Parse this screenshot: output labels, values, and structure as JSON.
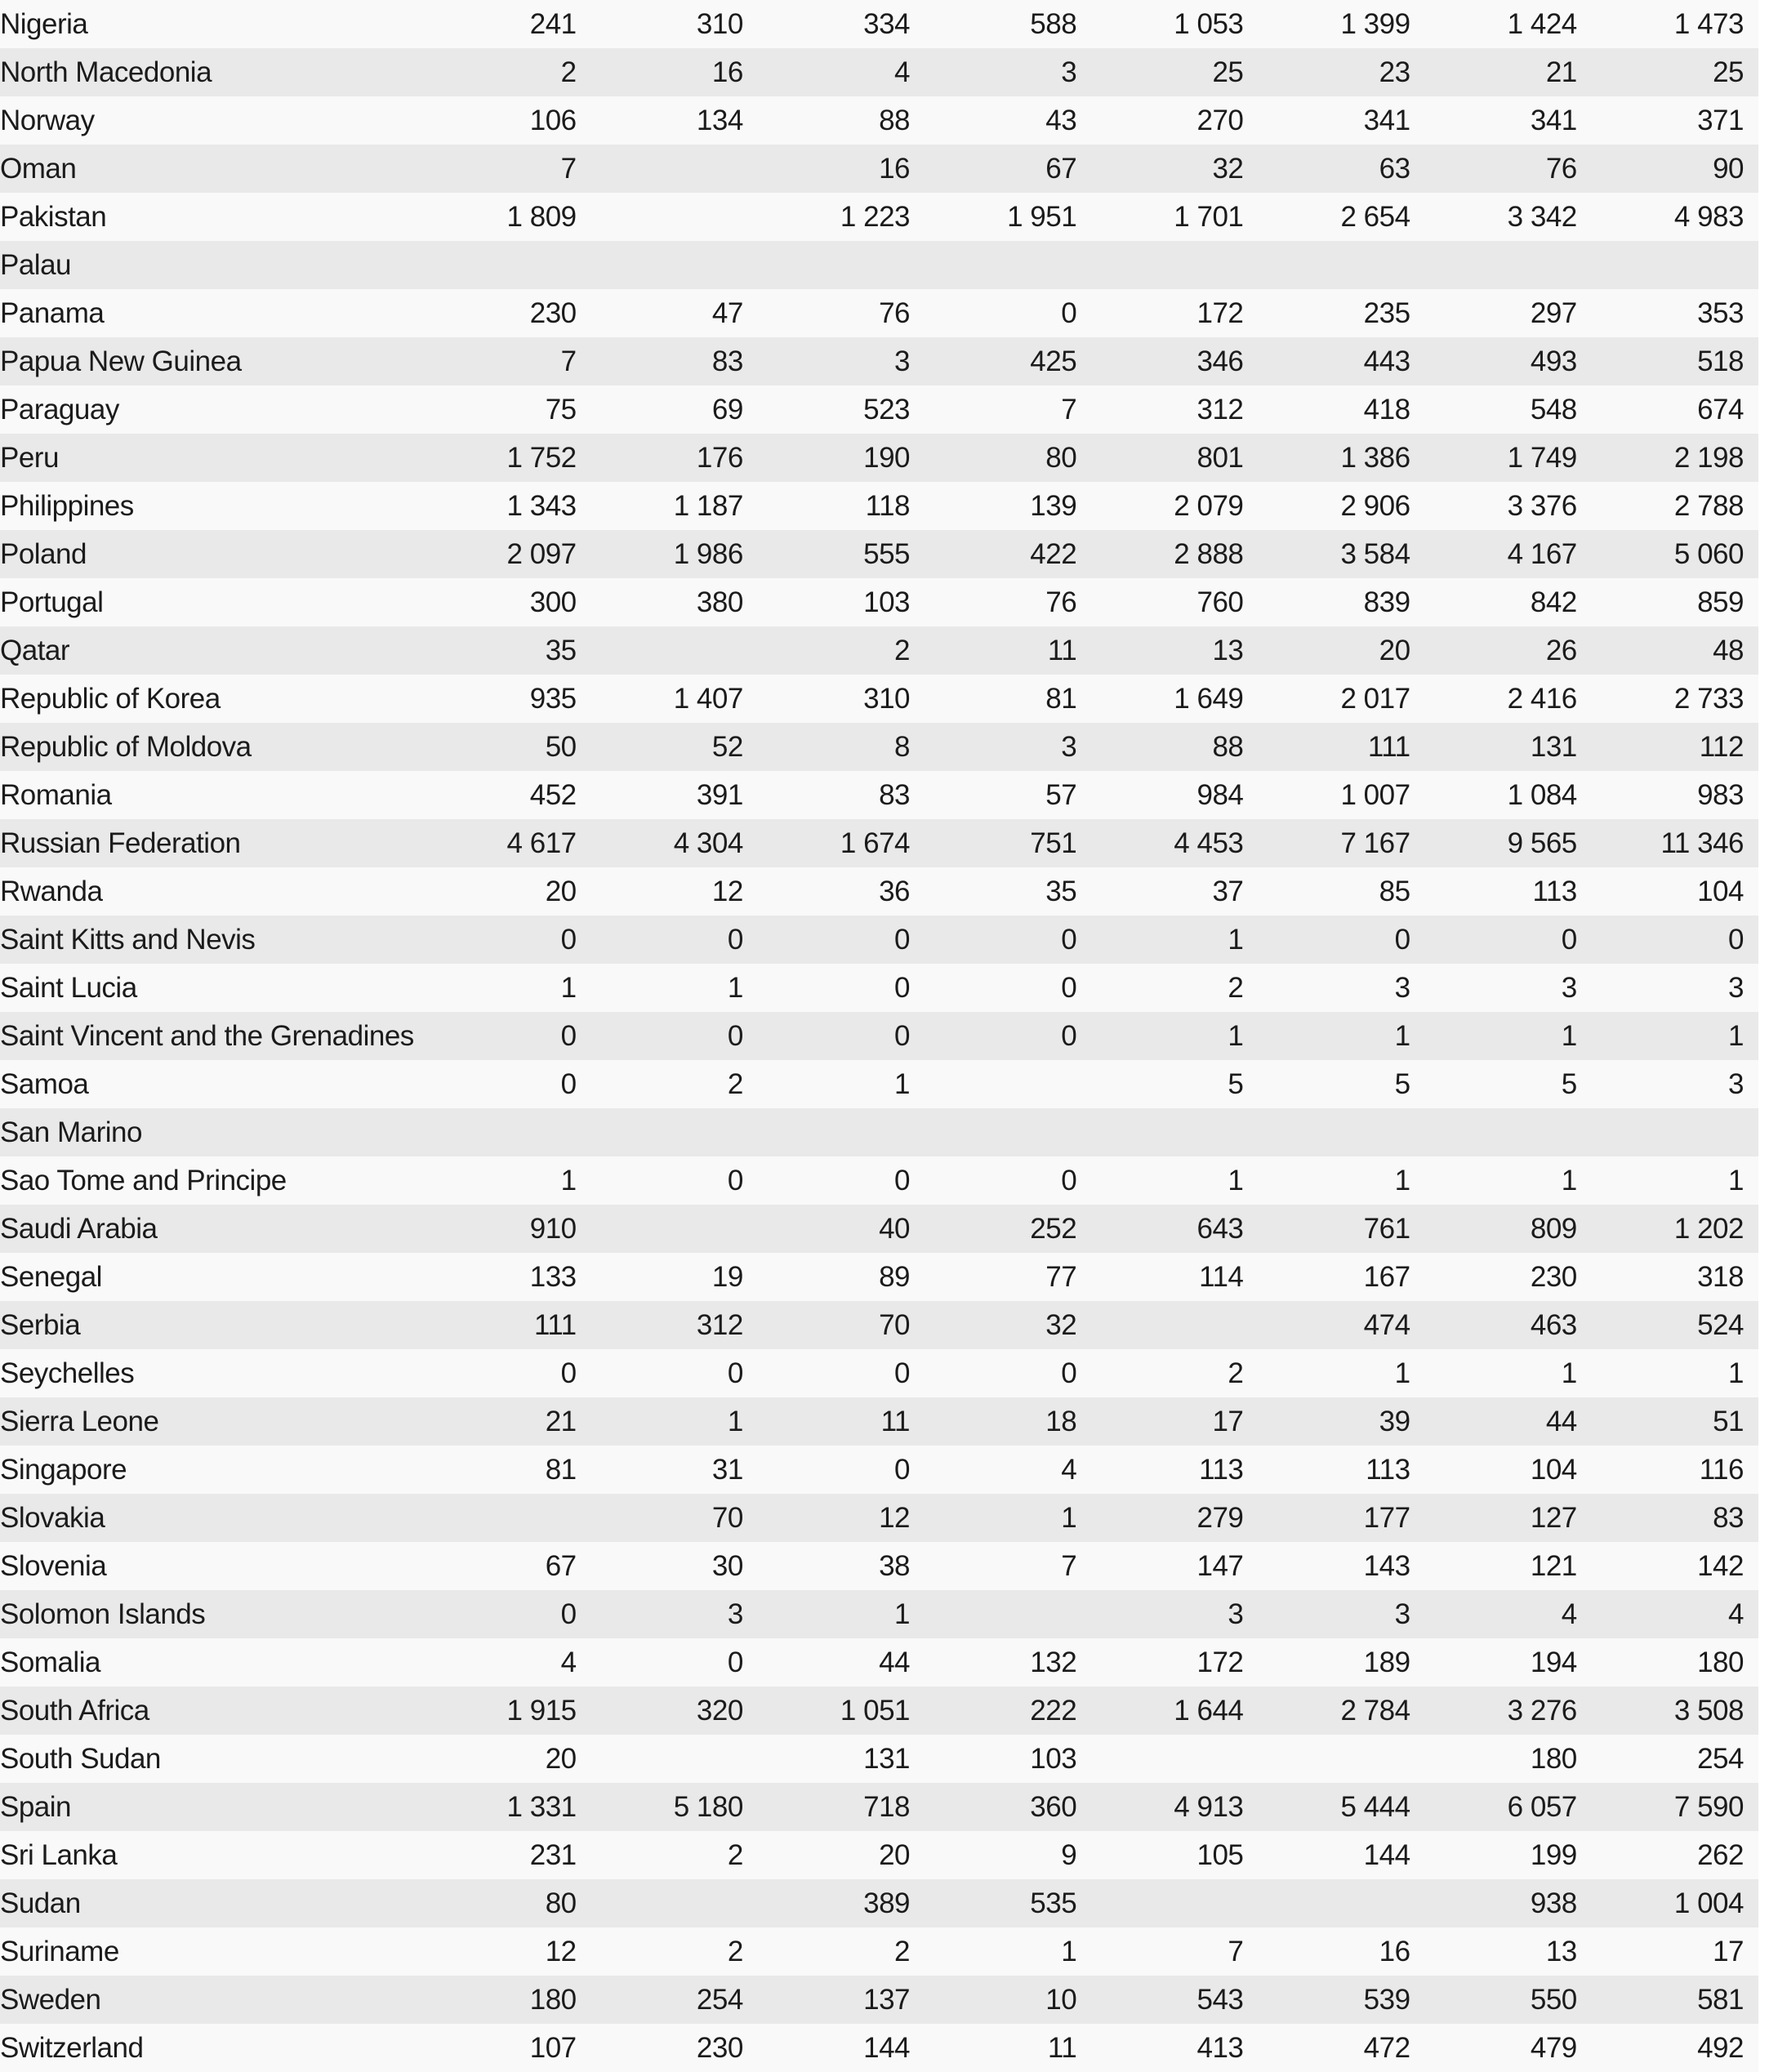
{
  "colors": {
    "row_light": "#f9f9f9",
    "row_dark": "#e9e9e9",
    "text": "#1b1b1b",
    "page_background": "#ffffff"
  },
  "table": {
    "value_columns_count": 8,
    "rows": [
      {
        "country": "Nigeria",
        "values": [
          "241",
          "310",
          "334",
          "588",
          "1 053",
          "1 399",
          "1 424",
          "1 473"
        ]
      },
      {
        "country": "North Macedonia",
        "values": [
          "2",
          "16",
          "4",
          "3",
          "25",
          "23",
          "21",
          "25"
        ]
      },
      {
        "country": "Norway",
        "values": [
          "106",
          "134",
          "88",
          "43",
          "270",
          "341",
          "341",
          "371"
        ]
      },
      {
        "country": "Oman",
        "values": [
          "7",
          "",
          "16",
          "67",
          "32",
          "63",
          "76",
          "90"
        ]
      },
      {
        "country": "Pakistan",
        "values": [
          "1 809",
          "",
          "1 223",
          "1 951",
          "1 701",
          "2 654",
          "3 342",
          "4 983"
        ]
      },
      {
        "country": "Palau",
        "values": [
          "",
          "",
          "",
          "",
          "",
          "",
          "",
          ""
        ]
      },
      {
        "country": "Panama",
        "values": [
          "230",
          "47",
          "76",
          "0",
          "172",
          "235",
          "297",
          "353"
        ]
      },
      {
        "country": "Papua New Guinea",
        "values": [
          "7",
          "83",
          "3",
          "425",
          "346",
          "443",
          "493",
          "518"
        ]
      },
      {
        "country": "Paraguay",
        "values": [
          "75",
          "69",
          "523",
          "7",
          "312",
          "418",
          "548",
          "674"
        ]
      },
      {
        "country": "Peru",
        "values": [
          "1 752",
          "176",
          "190",
          "80",
          "801",
          "1 386",
          "1 749",
          "2 198"
        ]
      },
      {
        "country": "Philippines",
        "values": [
          "1 343",
          "1 187",
          "118",
          "139",
          "2 079",
          "2 906",
          "3 376",
          "2 788"
        ]
      },
      {
        "country": "Poland",
        "values": [
          "2 097",
          "1 986",
          "555",
          "422",
          "2 888",
          "3 584",
          "4 167",
          "5 060"
        ]
      },
      {
        "country": "Portugal",
        "values": [
          "300",
          "380",
          "103",
          "76",
          "760",
          "839",
          "842",
          "859"
        ]
      },
      {
        "country": "Qatar",
        "values": [
          "35",
          "",
          "2",
          "11",
          "13",
          "20",
          "26",
          "48"
        ]
      },
      {
        "country": "Republic of Korea",
        "values": [
          "935",
          "1 407",
          "310",
          "81",
          "1 649",
          "2 017",
          "2 416",
          "2 733"
        ]
      },
      {
        "country": "Republic of Moldova",
        "values": [
          "50",
          "52",
          "8",
          "3",
          "88",
          "111",
          "131",
          "112"
        ]
      },
      {
        "country": "Romania",
        "values": [
          "452",
          "391",
          "83",
          "57",
          "984",
          "1 007",
          "1 084",
          "983"
        ]
      },
      {
        "country": "Russian Federation",
        "values": [
          "4 617",
          "4 304",
          "1 674",
          "751",
          "4 453",
          "7 167",
          "9 565",
          "11 346"
        ]
      },
      {
        "country": "Rwanda",
        "values": [
          "20",
          "12",
          "36",
          "35",
          "37",
          "85",
          "113",
          "104"
        ]
      },
      {
        "country": "Saint Kitts and Nevis",
        "values": [
          "0",
          "0",
          "0",
          "0",
          "1",
          "0",
          "0",
          "0"
        ]
      },
      {
        "country": "Saint Lucia",
        "values": [
          "1",
          "1",
          "0",
          "0",
          "2",
          "3",
          "3",
          "3"
        ]
      },
      {
        "country": "Saint Vincent and the Grenadines",
        "values": [
          "0",
          "0",
          "0",
          "0",
          "1",
          "1",
          "1",
          "1"
        ]
      },
      {
        "country": "Samoa",
        "values": [
          "0",
          "2",
          "1",
          "",
          "5",
          "5",
          "5",
          "3"
        ]
      },
      {
        "country": "San Marino",
        "values": [
          "",
          "",
          "",
          "",
          "",
          "",
          "",
          ""
        ]
      },
      {
        "country": "Sao Tome and Principe",
        "values": [
          "1",
          "0",
          "0",
          "0",
          "1",
          "1",
          "1",
          "1"
        ]
      },
      {
        "country": "Saudi Arabia",
        "values": [
          "910",
          "",
          "40",
          "252",
          "643",
          "761",
          "809",
          "1 202"
        ]
      },
      {
        "country": "Senegal",
        "values": [
          "133",
          "19",
          "89",
          "77",
          "114",
          "167",
          "230",
          "318"
        ]
      },
      {
        "country": "Serbia",
        "values": [
          "111",
          "312",
          "70",
          "32",
          "",
          "474",
          "463",
          "524"
        ]
      },
      {
        "country": "Seychelles",
        "values": [
          "0",
          "0",
          "0",
          "0",
          "2",
          "1",
          "1",
          "1"
        ]
      },
      {
        "country": "Sierra Leone",
        "values": [
          "21",
          "1",
          "11",
          "18",
          "17",
          "39",
          "44",
          "51"
        ]
      },
      {
        "country": "Singapore",
        "values": [
          "81",
          "31",
          "0",
          "4",
          "113",
          "113",
          "104",
          "116"
        ]
      },
      {
        "country": "Slovakia",
        "values": [
          "",
          "70",
          "12",
          "1",
          "279",
          "177",
          "127",
          "83"
        ]
      },
      {
        "country": "Slovenia",
        "values": [
          "67",
          "30",
          "38",
          "7",
          "147",
          "143",
          "121",
          "142"
        ]
      },
      {
        "country": "Solomon Islands",
        "values": [
          "0",
          "3",
          "1",
          "",
          "3",
          "3",
          "4",
          "4"
        ]
      },
      {
        "country": "Somalia",
        "values": [
          "4",
          "0",
          "44",
          "132",
          "172",
          "189",
          "194",
          "180"
        ]
      },
      {
        "country": "South Africa",
        "values": [
          "1 915",
          "320",
          "1 051",
          "222",
          "1 644",
          "2 784",
          "3 276",
          "3 508"
        ]
      },
      {
        "country": "South Sudan",
        "values": [
          "20",
          "",
          "131",
          "103",
          "",
          "",
          "180",
          "254"
        ]
      },
      {
        "country": "Spain",
        "values": [
          "1 331",
          "5 180",
          "718",
          "360",
          "4 913",
          "5 444",
          "6 057",
          "7 590"
        ]
      },
      {
        "country": "Sri Lanka",
        "values": [
          "231",
          "2",
          "20",
          "9",
          "105",
          "144",
          "199",
          "262"
        ]
      },
      {
        "country": "Sudan",
        "values": [
          "80",
          "",
          "389",
          "535",
          "",
          "",
          "938",
          "1 004"
        ]
      },
      {
        "country": "Suriname",
        "values": [
          "12",
          "2",
          "2",
          "1",
          "7",
          "16",
          "13",
          "17"
        ]
      },
      {
        "country": "Sweden",
        "values": [
          "180",
          "254",
          "137",
          "10",
          "543",
          "539",
          "550",
          "581"
        ]
      },
      {
        "country": "Switzerland",
        "values": [
          "107",
          "230",
          "144",
          "11",
          "413",
          "472",
          "479",
          "492"
        ]
      }
    ]
  }
}
